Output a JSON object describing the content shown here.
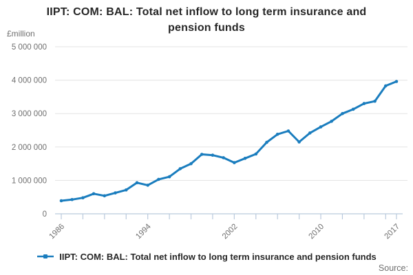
{
  "header": {
    "line1": "IIPT: COM: BAL: Total net inflow to long term insurance and",
    "line2": "pension funds",
    "unit_label": "£million"
  },
  "legend": {
    "label": "IIPT: COM: BAL: Total net inflow to long term insurance and pension funds"
  },
  "footer": {
    "source_label": "Source:"
  },
  "colors": {
    "line": "#1a7dbe",
    "grid": "#e3e3e3",
    "axis": "#b9c9dc",
    "text_muted": "#6e6e6e",
    "title_text": "#262626"
  },
  "chart_data": {
    "type": "line",
    "title": "IIPT: COM: BAL: Total net inflow to long term insurance and pension funds",
    "ylabel": "£million",
    "xlabel": "",
    "x": [
      1986,
      1987,
      1988,
      1989,
      1990,
      1991,
      1992,
      1993,
      1994,
      1995,
      1996,
      1997,
      1998,
      1999,
      2000,
      2001,
      2002,
      2003,
      2004,
      2005,
      2006,
      2007,
      2008,
      2009,
      2010,
      2011,
      2012,
      2013,
      2014,
      2015,
      2016,
      2017
    ],
    "series": [
      {
        "name": "IIPT: COM: BAL: Total net inflow to long term insurance and pension funds",
        "values": [
          390000,
          425000,
          480000,
          600000,
          540000,
          625000,
          715000,
          930000,
          855000,
          1030000,
          1110000,
          1350000,
          1500000,
          1780000,
          1755000,
          1680000,
          1530000,
          1660000,
          1790000,
          2140000,
          2380000,
          2480000,
          2150000,
          2420000,
          2600000,
          2770000,
          3000000,
          3130000,
          3300000,
          3370000,
          3830000,
          3960000
        ]
      }
    ],
    "ylim": [
      0,
      5000000
    ],
    "y_tick_step": 1000000,
    "y_tick_labels": [
      "0",
      "1 000 000",
      "2 000 000",
      "3 000 000",
      "4 000 000",
      "5 000 000"
    ],
    "x_ticks_labeled": [
      1986,
      1994,
      2002,
      2010,
      2017
    ],
    "x_tick_interval": 2,
    "grid": "horizontal",
    "legend_position": "bottom",
    "marker": "point"
  }
}
